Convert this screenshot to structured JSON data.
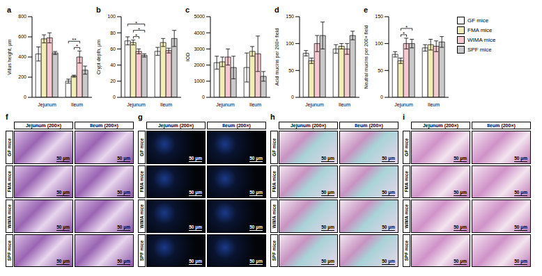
{
  "chart_data": [
    {
      "type": "bar",
      "panel_label": "a",
      "y_label": "Villus height, μm",
      "categories": [
        "Jejunum",
        "Ileum"
      ],
      "ylim": [
        0,
        800
      ],
      "yticks": [
        0,
        200,
        400,
        600,
        800
      ],
      "series": [
        {
          "name": "GF mice",
          "color": "#ffffff",
          "values": [
            430,
            160
          ],
          "errors": [
            70,
            20
          ]
        },
        {
          "name": "FMA mice",
          "color": "#f1ecb8",
          "values": [
            580,
            210
          ],
          "errors": [
            40,
            10
          ]
        },
        {
          "name": "WIMA mice",
          "color": "#f5c9cf",
          "values": [
            590,
            400
          ],
          "errors": [
            50,
            60
          ]
        },
        {
          "name": "SPF mice",
          "color": "#c9c9c9",
          "values": [
            440,
            270
          ],
          "errors": [
            15,
            40
          ]
        }
      ],
      "significance": [
        {
          "category": "Ileum",
          "from": "FMA mice",
          "to": "WIMA mice",
          "label": "*"
        },
        {
          "category": "Ileum",
          "from": "GF mice",
          "to": "WIMA mice",
          "label": "**"
        }
      ]
    },
    {
      "type": "bar",
      "panel_label": "b",
      "y_label": "Crypt depth, μm",
      "categories": [
        "Jejunum",
        "Ileum"
      ],
      "ylim": [
        0,
        100
      ],
      "yticks": [
        0,
        20,
        40,
        60,
        80,
        100
      ],
      "series": [
        {
          "name": "GF mice",
          "color": "#ffffff",
          "values": [
            70,
            57
          ],
          "errors": [
            5,
            5
          ]
        },
        {
          "name": "FMA mice",
          "color": "#f1ecb8",
          "values": [
            68,
            68
          ],
          "errors": [
            3,
            5
          ]
        },
        {
          "name": "WIMA mice",
          "color": "#f5c9cf",
          "values": [
            57,
            58
          ],
          "errors": [
            3,
            3
          ]
        },
        {
          "name": "SPF mice",
          "color": "#c9c9c9",
          "values": [
            52,
            73
          ],
          "errors": [
            2,
            10
          ]
        }
      ],
      "significance": [
        {
          "category": "Jejunum",
          "from": "FMA mice",
          "to": "WIMA mice",
          "label": "*"
        },
        {
          "category": "Jejunum",
          "from": "FMA mice",
          "to": "SPF mice",
          "label": "*"
        },
        {
          "category": "Jejunum",
          "from": "GF mice",
          "to": "SPF mice",
          "label": "*"
        }
      ]
    },
    {
      "type": "bar",
      "panel_label": "c",
      "y_label": "IOD",
      "categories": [
        "Jejunum",
        "Ileum"
      ],
      "ylim": [
        0,
        5000
      ],
      "yticks": [
        0,
        1000,
        2000,
        3000,
        4000,
        5000
      ],
      "series": [
        {
          "name": "GF mice",
          "color": "#ffffff",
          "values": [
            2150,
            1850
          ],
          "errors": [
            400,
            900
          ]
        },
        {
          "name": "FMA mice",
          "color": "#f1ecb8",
          "values": [
            2200,
            2850
          ],
          "errors": [
            300,
            300
          ]
        },
        {
          "name": "WIMA mice",
          "color": "#f5c9cf",
          "values": [
            2500,
            2700
          ],
          "errors": [
            500,
            1100
          ]
        },
        {
          "name": "SPF mice",
          "color": "#c9c9c9",
          "values": [
            1850,
            1300
          ],
          "errors": [
            700,
            300
          ]
        }
      ],
      "significance": []
    },
    {
      "type": "bar",
      "panel_label": "d",
      "y_label": "Acid mucins per 200× field",
      "categories": [
        "Jejunum",
        "Ileum"
      ],
      "ylim": [
        0,
        150
      ],
      "yticks": [
        0,
        50,
        100,
        150
      ],
      "series": [
        {
          "name": "GF mice",
          "color": "#ffffff",
          "values": [
            82,
            90
          ],
          "errors": [
            5,
            8
          ]
        },
        {
          "name": "FMA mice",
          "color": "#f1ecb8",
          "values": [
            68,
            95
          ],
          "errors": [
            5,
            5
          ]
        },
        {
          "name": "WIMA mice",
          "color": "#f5c9cf",
          "values": [
            100,
            90
          ],
          "errors": [
            15,
            10
          ]
        },
        {
          "name": "SPF mice",
          "color": "#c9c9c9",
          "values": [
            115,
            115
          ],
          "errors": [
            25,
            8
          ]
        }
      ],
      "significance": []
    },
    {
      "type": "bar",
      "panel_label": "e",
      "y_label": "Neutral mucins per 200× field",
      "categories": [
        "Jejunum",
        "Ileum"
      ],
      "ylim": [
        0,
        150
      ],
      "yticks": [
        0,
        50,
        100,
        150
      ],
      "series": [
        {
          "name": "GF mice",
          "color": "#ffffff",
          "values": [
            80,
            92
          ],
          "errors": [
            5,
            6
          ]
        },
        {
          "name": "FMA mice",
          "color": "#f1ecb8",
          "values": [
            68,
            98
          ],
          "errors": [
            5,
            10
          ]
        },
        {
          "name": "WIMA mice",
          "color": "#f5c9cf",
          "values": [
            100,
            95
          ],
          "errors": [
            10,
            10
          ]
        },
        {
          "name": "SPF mice",
          "color": "#c9c9c9",
          "values": [
            100,
            103
          ],
          "errors": [
            8,
            10
          ]
        }
      ],
      "significance": [
        {
          "category": "Jejunum",
          "from": "FMA mice",
          "to": "WIMA mice",
          "label": "*"
        },
        {
          "category": "Jejunum",
          "from": "FMA mice",
          "to": "SPF mice",
          "label": "*"
        }
      ]
    }
  ],
  "image_panels": {
    "panel_labels": [
      "f",
      "g",
      "h",
      "i"
    ],
    "columns": [
      "Jejunum (200×)",
      "Ileum (200×)"
    ],
    "rows": [
      "GF mice",
      "FMA mice",
      "WIMA mice",
      "SPF mice"
    ],
    "scale_bar": "50 μm"
  }
}
